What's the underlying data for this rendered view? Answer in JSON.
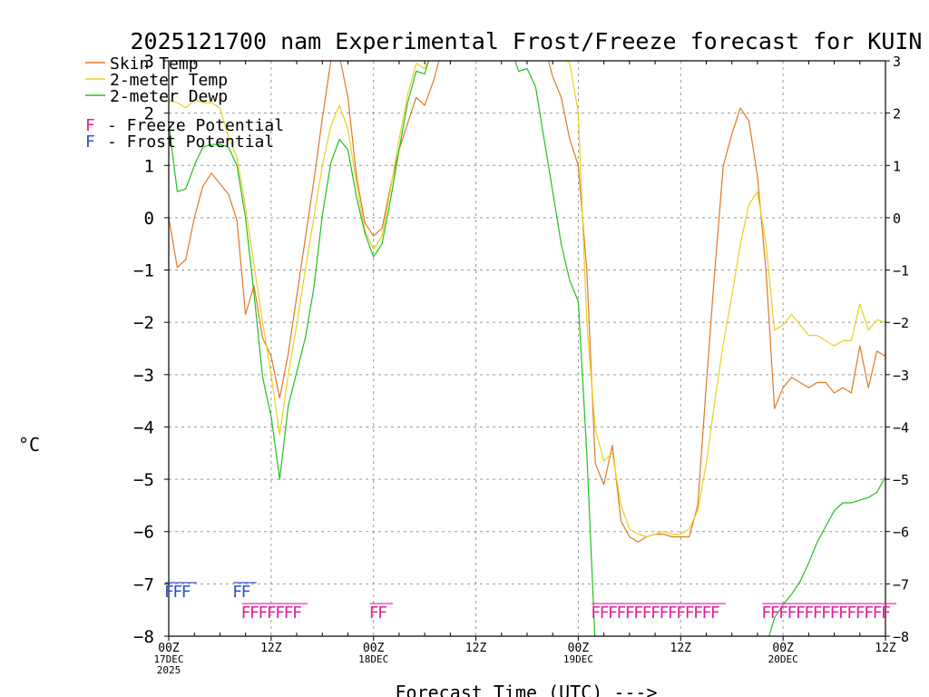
{
  "chart_data": {
    "type": "line",
    "title": "2025121700 nam Experimental Frost/Freeze forecast for KUIN",
    "xlabel": "Forecast Time (UTC) --->",
    "ylabel": "°C",
    "ylim": [
      -8,
      3
    ],
    "xlim": [
      0,
      84
    ],
    "y_ticks": [
      -8,
      -7,
      -6,
      -5,
      -4,
      -3,
      -2,
      -1,
      0,
      1,
      2,
      3
    ],
    "x_ticks": [
      {
        "x": 0,
        "lines": [
          "00Z",
          "17DEC",
          "2025"
        ]
      },
      {
        "x": 12,
        "lines": [
          "12Z"
        ]
      },
      {
        "x": 24,
        "lines": [
          "00Z",
          "18DEC"
        ]
      },
      {
        "x": 36,
        "lines": [
          "12Z"
        ]
      },
      {
        "x": 48,
        "lines": [
          "00Z",
          "19DEC"
        ]
      },
      {
        "x": 60,
        "lines": [
          "12Z"
        ]
      },
      {
        "x": 72,
        "lines": [
          "00Z",
          "20DEC"
        ]
      },
      {
        "x": 84,
        "lines": [
          "12Z"
        ]
      }
    ],
    "series": [
      {
        "name": "Skin Temp",
        "color": "#e07828",
        "points": [
          [
            0,
            0.0
          ],
          [
            1,
            -0.95
          ],
          [
            2,
            -0.8
          ],
          [
            3,
            0.0
          ],
          [
            4,
            0.6
          ],
          [
            5,
            0.85
          ],
          [
            6,
            0.65
          ],
          [
            7,
            0.45
          ],
          [
            8,
            -0.05
          ],
          [
            9,
            -1.85
          ],
          [
            10,
            -1.3
          ],
          [
            11,
            -2.3
          ],
          [
            12,
            -2.65
          ],
          [
            13,
            -3.45
          ],
          [
            14,
            -2.6
          ],
          [
            15,
            -1.5
          ],
          [
            16,
            -0.4
          ],
          [
            17,
            0.7
          ],
          [
            18,
            1.9
          ],
          [
            19,
            3.0
          ],
          [
            20,
            3.1
          ],
          [
            21,
            2.3
          ],
          [
            22,
            0.8
          ],
          [
            23,
            -0.1
          ],
          [
            24,
            -0.35
          ],
          [
            25,
            -0.2
          ],
          [
            26,
            0.6
          ],
          [
            27,
            1.3
          ],
          [
            28,
            1.8
          ],
          [
            29,
            2.3
          ],
          [
            30,
            2.15
          ],
          [
            31,
            2.6
          ],
          [
            32,
            3.2
          ],
          [
            33,
            3.3
          ],
          [
            40,
            3.3
          ],
          [
            43,
            3.3
          ],
          [
            44,
            3.3
          ],
          [
            45,
            2.7
          ],
          [
            46,
            2.3
          ],
          [
            47,
            1.5
          ],
          [
            48,
            1.0
          ],
          [
            49,
            -1.0
          ],
          [
            50,
            -4.7
          ],
          [
            51,
            -5.1
          ],
          [
            52,
            -4.35
          ],
          [
            53,
            -5.8
          ],
          [
            54,
            -6.1
          ],
          [
            55,
            -6.2
          ],
          [
            56,
            -6.1
          ],
          [
            57,
            -6.05
          ],
          [
            58,
            -6.05
          ],
          [
            59,
            -6.1
          ],
          [
            60,
            -6.1
          ],
          [
            61,
            -6.1
          ],
          [
            62,
            -5.5
          ],
          [
            63,
            -3.2
          ],
          [
            64,
            -1.0
          ],
          [
            65,
            1.0
          ],
          [
            66,
            1.6
          ],
          [
            67,
            2.1
          ],
          [
            68,
            1.85
          ],
          [
            69,
            0.8
          ],
          [
            70,
            -1.0
          ],
          [
            71,
            -3.65
          ],
          [
            72,
            -3.25
          ],
          [
            73,
            -3.05
          ],
          [
            74,
            -3.15
          ],
          [
            75,
            -3.25
          ],
          [
            76,
            -3.15
          ],
          [
            77,
            -3.15
          ],
          [
            78,
            -3.35
          ],
          [
            79,
            -3.25
          ],
          [
            80,
            -3.35
          ],
          [
            81,
            -2.45
          ],
          [
            82,
            -3.25
          ],
          [
            83,
            -2.55
          ],
          [
            84,
            -2.65
          ]
        ]
      },
      {
        "name": "2-meter Temp",
        "color": "#e8d020",
        "points": [
          [
            0,
            2.25
          ],
          [
            1,
            2.2
          ],
          [
            2,
            2.1
          ],
          [
            3,
            2.25
          ],
          [
            4,
            2.2
          ],
          [
            5,
            2.2
          ],
          [
            6,
            2.1
          ],
          [
            7,
            1.55
          ],
          [
            8,
            1.15
          ],
          [
            9,
            0.2
          ],
          [
            10,
            -0.9
          ],
          [
            11,
            -2.0
          ],
          [
            12,
            -3.0
          ],
          [
            13,
            -4.15
          ],
          [
            14,
            -3.0
          ],
          [
            15,
            -2.05
          ],
          [
            16,
            -1.0
          ],
          [
            17,
            0.0
          ],
          [
            18,
            1.0
          ],
          [
            19,
            1.75
          ],
          [
            20,
            2.15
          ],
          [
            21,
            1.7
          ],
          [
            22,
            0.65
          ],
          [
            23,
            -0.25
          ],
          [
            24,
            -0.6
          ],
          [
            25,
            -0.35
          ],
          [
            26,
            0.55
          ],
          [
            27,
            1.5
          ],
          [
            28,
            2.35
          ],
          [
            29,
            2.95
          ],
          [
            30,
            2.85
          ],
          [
            31,
            3.2
          ],
          [
            40,
            3.3
          ],
          [
            44,
            3.3
          ],
          [
            45,
            3.2
          ],
          [
            46,
            3.1
          ],
          [
            47,
            2.95
          ],
          [
            48,
            2.0
          ],
          [
            49,
            -2.0
          ],
          [
            50,
            -4.05
          ],
          [
            51,
            -4.65
          ],
          [
            52,
            -4.5
          ],
          [
            53,
            -5.5
          ],
          [
            54,
            -5.95
          ],
          [
            55,
            -6.05
          ],
          [
            56,
            -6.1
          ],
          [
            57,
            -6.05
          ],
          [
            58,
            -6.0
          ],
          [
            59,
            -6.05
          ],
          [
            60,
            -6.05
          ],
          [
            61,
            -5.95
          ],
          [
            62,
            -5.6
          ],
          [
            63,
            -4.7
          ],
          [
            64,
            -3.5
          ],
          [
            65,
            -2.4
          ],
          [
            66,
            -1.5
          ],
          [
            67,
            -0.5
          ],
          [
            68,
            0.25
          ],
          [
            69,
            0.5
          ],
          [
            70,
            -0.5
          ],
          [
            71,
            -2.15
          ],
          [
            72,
            -2.05
          ],
          [
            73,
            -1.85
          ],
          [
            74,
            -2.05
          ],
          [
            75,
            -2.25
          ],
          [
            76,
            -2.25
          ],
          [
            77,
            -2.35
          ],
          [
            78,
            -2.45
          ],
          [
            79,
            -2.35
          ],
          [
            80,
            -2.35
          ],
          [
            81,
            -1.65
          ],
          [
            82,
            -2.15
          ],
          [
            83,
            -1.95
          ],
          [
            84,
            -2.0
          ]
        ]
      },
      {
        "name": "2-meter Dewp",
        "color": "#20c020",
        "points": [
          [
            0,
            1.8
          ],
          [
            1,
            0.5
          ],
          [
            2,
            0.55
          ],
          [
            3,
            1.0
          ],
          [
            4,
            1.35
          ],
          [
            5,
            1.4
          ],
          [
            6,
            1.4
          ],
          [
            7,
            1.35
          ],
          [
            8,
            1.0
          ],
          [
            9,
            0.0
          ],
          [
            10,
            -1.45
          ],
          [
            11,
            -3.05
          ],
          [
            12,
            -3.8
          ],
          [
            13,
            -5.0
          ],
          [
            14,
            -3.6
          ],
          [
            15,
            -2.95
          ],
          [
            16,
            -2.3
          ],
          [
            17,
            -1.35
          ],
          [
            18,
            0.05
          ],
          [
            19,
            1.05
          ],
          [
            20,
            1.5
          ],
          [
            21,
            1.3
          ],
          [
            22,
            0.4
          ],
          [
            23,
            -0.3
          ],
          [
            24,
            -0.75
          ],
          [
            25,
            -0.5
          ],
          [
            26,
            0.35
          ],
          [
            27,
            1.3
          ],
          [
            28,
            2.2
          ],
          [
            29,
            2.8
          ],
          [
            30,
            2.75
          ],
          [
            31,
            3.3
          ],
          [
            40,
            3.3
          ],
          [
            41,
            2.8
          ],
          [
            42,
            2.85
          ],
          [
            43,
            2.5
          ],
          [
            44,
            1.5
          ],
          [
            45,
            0.5
          ],
          [
            46,
            -0.5
          ],
          [
            47,
            -1.2
          ],
          [
            48,
            -1.6
          ],
          [
            49,
            -4.5
          ],
          [
            50,
            -8.2
          ],
          [
            70,
            -8.2
          ],
          [
            71,
            -7.65
          ],
          [
            72,
            -7.4
          ],
          [
            73,
            -7.2
          ],
          [
            74,
            -6.95
          ],
          [
            75,
            -6.6
          ],
          [
            76,
            -6.2
          ],
          [
            77,
            -5.9
          ],
          [
            78,
            -5.6
          ],
          [
            79,
            -5.45
          ],
          [
            80,
            -5.45
          ],
          [
            81,
            -5.4
          ],
          [
            82,
            -5.35
          ],
          [
            83,
            -5.25
          ],
          [
            84,
            -4.95
          ]
        ]
      }
    ],
    "legend": {
      "position": "top-left",
      "entries": [
        {
          "label": "Skin Temp",
          "color": "#e07828"
        },
        {
          "label": "2-meter Temp",
          "color": "#e8d020"
        },
        {
          "label": "2-meter Dewp",
          "color": "#20c020"
        }
      ],
      "potential_entries": [
        {
          "marker": "F",
          "label": "- Freeze Potential",
          "color": "#e0209a"
        },
        {
          "marker": "F",
          "label": "- Frost Potential",
          "color": "#3050c8"
        }
      ]
    },
    "annotations": [
      {
        "kind": "Frost Potential",
        "marker": "F",
        "color": "#3050c8",
        "y": -7.15,
        "hours": [
          0,
          1,
          2,
          8,
          9
        ]
      },
      {
        "kind": "Freeze Potential",
        "marker": "F",
        "color": "#e0209a",
        "y": -7.55,
        "hours": [
          9,
          10,
          11,
          12,
          13,
          14,
          15,
          24,
          25,
          50,
          51,
          52,
          53,
          54,
          55,
          56,
          57,
          58,
          59,
          60,
          61,
          62,
          63,
          64,
          70,
          71,
          72,
          73,
          74,
          75,
          76,
          77,
          78,
          79,
          80,
          81,
          82,
          83,
          84
        ]
      }
    ]
  }
}
